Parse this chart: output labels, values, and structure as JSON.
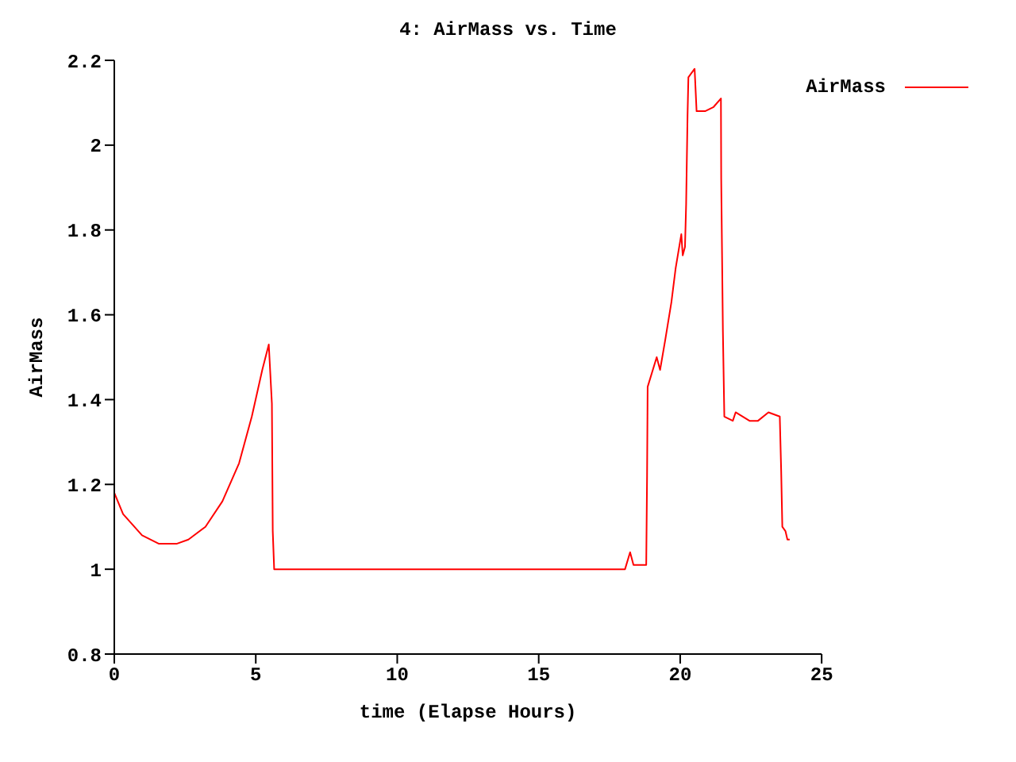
{
  "chart_data": {
    "type": "line",
    "title": "4: AirMass vs. Time",
    "xlabel": "time (Elapse Hours)",
    "ylabel": "AirMass",
    "xlim": [
      0,
      25
    ],
    "xticks": [
      0,
      5,
      10,
      15,
      20,
      25
    ],
    "ylim": [
      0.8,
      2.2
    ],
    "yticks": [
      {
        "value": 0.8,
        "label": "0.8"
      },
      1,
      {
        "value": 1.2,
        "label": "1.2"
      },
      {
        "value": 1.4,
        "label": "1.4"
      },
      {
        "value": 1.6,
        "label": "1.6"
      },
      {
        "value": 1.8,
        "label": "1.8"
      },
      2,
      {
        "value": 2.2,
        "label": "2.2"
      }
    ],
    "grid": false,
    "legend": "top right",
    "marker": "none",
    "line_style": "solid",
    "series": [
      {
        "name": "AirMass",
        "color": "#ff0000",
        "x": [
          0,
          0.31,
          0.98,
          1.58,
          2.2,
          2.62,
          3.22,
          3.82,
          4.41,
          4.86,
          5.23,
          5.46,
          5.57,
          5.6,
          5.65,
          18.05,
          18.23,
          18.35,
          18.8,
          18.83,
          18.85,
          19.17,
          19.29,
          19.47,
          19.69,
          19.84,
          20.04,
          20.09,
          20.17,
          20.21,
          20.26,
          20.29,
          20.51,
          20.58,
          20.88,
          21.18,
          21.44,
          21.45,
          21.51,
          21.56,
          21.86,
          21.96,
          22.45,
          22.75,
          23.12,
          23.52,
          23.57,
          23.61,
          23.72,
          23.79,
          23.87
        ],
        "values": [
          1.18,
          1.13,
          1.08,
          1.06,
          1.06,
          1.07,
          1.1,
          1.16,
          1.25,
          1.36,
          1.47,
          1.53,
          1.39,
          1.09,
          1,
          1,
          1.04,
          1.01,
          1.01,
          1.22,
          1.43,
          1.5,
          1.47,
          1.54,
          1.63,
          1.71,
          1.79,
          1.74,
          1.76,
          1.86,
          2.07,
          2.16,
          2.18,
          2.08,
          2.08,
          2.09,
          2.11,
          1.92,
          1.56,
          1.36,
          1.35,
          1.37,
          1.35,
          1.35,
          1.37,
          1.36,
          1.23,
          1.1,
          1.09,
          1.07,
          1.07
        ]
      }
    ]
  }
}
